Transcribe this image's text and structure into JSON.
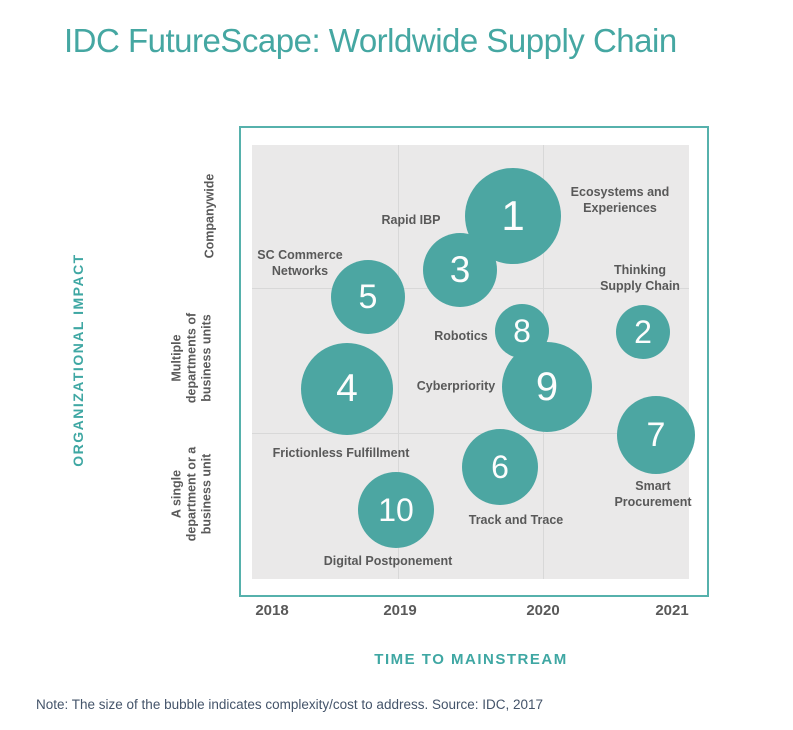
{
  "title": "IDC FutureScape: Worldwide Supply Chain",
  "note": "Note: The size of the bubble indicates complexity/cost to address. Source: IDC, 2017",
  "colors": {
    "bubble_teal": "#4CA6A2",
    "title_teal": "#45A7A2",
    "border_teal": "#56B1AC",
    "plot_background": "#EAE9E9",
    "gridline": "#D8D8D8",
    "label_gray": "#595959",
    "note_slate": "#44546A",
    "bubble_number_white": "#FDFDFD"
  },
  "chart_data": {
    "type": "scatter",
    "subtype": "bubble",
    "title": "IDC FutureScape: Worldwide Supply Chain",
    "xlabel": "TIME TO MAINSTREAM",
    "ylabel": "ORGANIZATIONAL IMPACT",
    "x_tick_labels": [
      "2018",
      "2019",
      "2020",
      "2021"
    ],
    "y_tick_labels": [
      "Companywide",
      "Multiple\ndepartments of\nbusiness units",
      "A single\ndepartment or a\nbusiness unit"
    ],
    "x_range": [
      2018,
      2021
    ],
    "grid": true,
    "legend_position": "none",
    "size_meaning": "bubble size indicates complexity/cost to address",
    "points": [
      {
        "n": "1",
        "label": "Ecosystems and\nExperiences",
        "year": 2019.8,
        "impact": "Companywide",
        "size": 48
      },
      {
        "n": "2",
        "label": "Thinking\nSupply Chain",
        "year": 2020.8,
        "impact": "Multiple departments of business units",
        "size": 27
      },
      {
        "n": "3",
        "label": "Rapid IBP",
        "year": 2019.4,
        "impact": "Companywide",
        "size": 37
      },
      {
        "n": "4",
        "label": "Frictionless Fulfillment",
        "year": 2018.6,
        "impact": "Multiple departments of business units",
        "size": 46
      },
      {
        "n": "5",
        "label": "SC Commerce\nNetworks",
        "year": 2018.7,
        "impact": "Multiple departments of business units",
        "size": 37
      },
      {
        "n": "6",
        "label": "Track and Trace",
        "year": 2019.7,
        "impact": "A single department or a business unit",
        "size": 38
      },
      {
        "n": "7",
        "label": "Smart\nProcurement",
        "year": 2020.9,
        "impact": "A single department or a business unit",
        "size": 39
      },
      {
        "n": "8",
        "label": "Robotics",
        "year": 2019.9,
        "impact": "Multiple departments of business units",
        "size": 27
      },
      {
        "n": "9",
        "label": "Cyberpriority",
        "year": 2020.1,
        "impact": "Multiple departments of business units",
        "size": 45
      },
      {
        "n": "10",
        "label": "Digital Postponement",
        "year": 2018.9,
        "impact": "A single department or a business unit",
        "size": 38
      }
    ]
  }
}
